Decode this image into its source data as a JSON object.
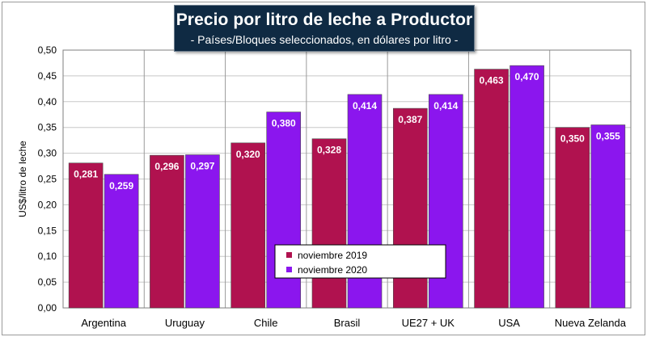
{
  "colors": {
    "series_2019": "#b0124f",
    "series_2020": "#8b16ee",
    "title_bg": "#0f2a43",
    "plot_bg": "#ffffff",
    "grid": "#c8c8c8",
    "separator": "#9a9a9a"
  },
  "chart_data": {
    "type": "bar",
    "title": "Precio por litro de leche a Productor",
    "subtitle": "- Países/Bloques seleccionados, en dólares por litro -",
    "xlabel": "",
    "ylabel": "US$/litro de leche",
    "ylim": [
      0,
      0.5
    ],
    "yticks": [
      "0,00",
      "0,05",
      "0,10",
      "0,15",
      "0,20",
      "0,25",
      "0,30",
      "0,35",
      "0,40",
      "0,45",
      "0,50"
    ],
    "categories": [
      "Argentina",
      "Uruguay",
      "Chile",
      "Brasil",
      "UE27 + UK",
      "USA",
      "Nueva Zelanda"
    ],
    "series": [
      {
        "name": "noviembre 2019",
        "values": [
          0.281,
          0.296,
          0.32,
          0.328,
          0.387,
          0.463,
          0.35
        ],
        "labels": [
          "0,281",
          "0,296",
          "0,320",
          "0,328",
          "0,387",
          "0,463",
          "0,350"
        ]
      },
      {
        "name": "noviembre 2020",
        "values": [
          0.259,
          0.297,
          0.38,
          0.414,
          0.414,
          0.47,
          0.355
        ],
        "labels": [
          "0,259",
          "0,297",
          "0,380",
          "0,414",
          "0,414",
          "0,470",
          "0,355"
        ]
      }
    ],
    "legend_position": "bottom-center",
    "grid": true
  }
}
